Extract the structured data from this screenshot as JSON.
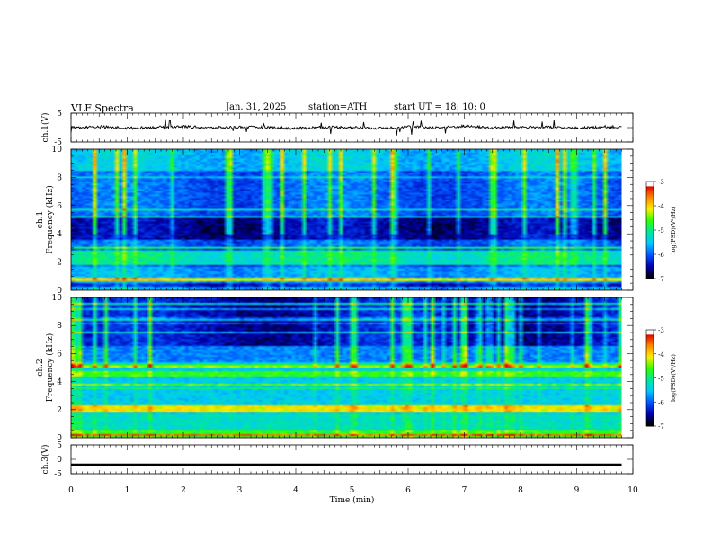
{
  "header": {
    "title": "VLF  Spectra",
    "date": "Jan. 31, 2025",
    "station": "station=ATH",
    "start": "start  UT  =   18: 10: 0"
  },
  "colors": {
    "spectrogram_scale": [
      "#000000",
      "#0000b0",
      "#0055ff",
      "#00c8ff",
      "#00e89a",
      "#30ff00",
      "#ffee00",
      "#ff8800",
      "#e00000",
      "#ffffff"
    ],
    "trace": "#000000"
  },
  "chart_data": [
    {
      "type": "line",
      "name": "ch1-voltage",
      "ylabel": "ch.1(V)",
      "ylim": [
        -5,
        5
      ],
      "yticks": [
        "5",
        "-5"
      ],
      "xlim": [
        0,
        10
      ],
      "description_values": "noisy trace near 0 V with spikes",
      "x": [
        0,
        0.5,
        1,
        1.5,
        2,
        2.5,
        3,
        3.5,
        4,
        4.5,
        5,
        5.5,
        6,
        6.5,
        7,
        7.5,
        8,
        8.5,
        9,
        9.5,
        9.8
      ],
      "y": [
        0,
        0.3,
        -0.2,
        0.1,
        0.4,
        -0.1,
        0.2,
        0.1,
        -0.3,
        0.2,
        0.1,
        -0.2,
        0.3,
        0.0,
        0.5,
        -0.1,
        0.2,
        0.1,
        -0.2,
        0.3,
        0.1
      ]
    },
    {
      "type": "heatmap",
      "name": "ch1-spectrogram",
      "ylabel": "Frequency  (kHz)",
      "channel_label": "ch.1",
      "ylim": [
        0,
        10
      ],
      "yticks": [
        "0",
        "2",
        "4",
        "6",
        "8",
        "10"
      ],
      "xlim": [
        0,
        10
      ],
      "data_extent_min": 9.8,
      "colorbar": {
        "label": "log(PSD)(V²/Hz)",
        "range": [
          -7,
          -3
        ],
        "ticks": [
          "-3",
          "-4",
          "-5",
          "-6",
          "-7"
        ]
      }
    },
    {
      "type": "heatmap",
      "name": "ch2-spectrogram",
      "ylabel": "Frequency  (kHz)",
      "channel_label": "ch.2",
      "ylim": [
        0,
        10
      ],
      "yticks": [
        "0",
        "2",
        "4",
        "6",
        "8",
        "10"
      ],
      "xlim": [
        0,
        10
      ],
      "data_extent_min": 9.8,
      "colorbar": {
        "label": "log(PSD)(V²/Hz)",
        "range": [
          -7,
          -3
        ],
        "ticks": [
          "-3",
          "-4",
          "-5",
          "-6",
          "-7"
        ]
      }
    },
    {
      "type": "line",
      "name": "ch3-voltage",
      "ylabel": "ch.3(V)",
      "ylim": [
        -5,
        5
      ],
      "yticks": [
        "5",
        "0",
        "-5"
      ],
      "xlim": [
        0,
        10
      ],
      "x": [
        0,
        9.8
      ],
      "y": [
        -2,
        -2
      ]
    }
  ],
  "xaxis": {
    "label": "Time  (min)",
    "ticks": [
      "0",
      "1",
      "2",
      "3",
      "4",
      "5",
      "6",
      "7",
      "8",
      "9",
      "10"
    ]
  }
}
